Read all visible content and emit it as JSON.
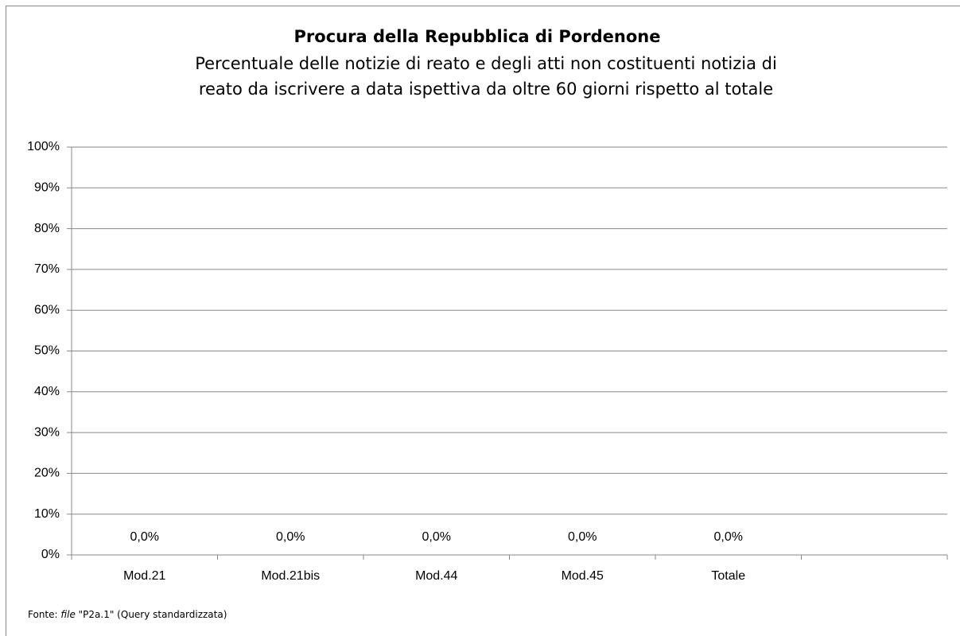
{
  "chart_data": {
    "type": "bar",
    "title": "Procura della Repubblica di Pordenone",
    "subtitle": [
      "Percentuale delle notizie di reato e degli atti non costituenti notizia di",
      "reato da iscrivere a data ispettiva da oltre 60 giorni rispetto al totale"
    ],
    "categories": [
      "Mod.21",
      "Mod.21bis",
      "Mod.44",
      "Mod.45",
      "Totale",
      null
    ],
    "values": [
      0,
      0,
      0,
      0,
      0,
      null
    ],
    "value_labels": [
      "0,0%",
      "0,0%",
      "0,0%",
      "0,0%",
      "0,0%",
      null
    ],
    "color": "#4f81bd",
    "ylim": [
      0,
      100
    ],
    "yticks": [
      {
        "value": 0,
        "label": "0%"
      },
      {
        "value": 10,
        "label": "10%"
      },
      {
        "value": 20,
        "label": "20%"
      },
      {
        "value": 30,
        "label": "30%"
      },
      {
        "value": 40,
        "label": "40%"
      },
      {
        "value": 50,
        "label": "50%"
      },
      {
        "value": 60,
        "label": "60%"
      },
      {
        "value": 70,
        "label": "70%"
      },
      {
        "value": 80,
        "label": "80%"
      },
      {
        "value": 90,
        "label": "90%"
      },
      {
        "value": 100,
        "label": "100%"
      }
    ],
    "grid": true,
    "source": [
      "Fonte: ",
      "file",
      " \"P2a.1\" (Query standardizzata)"
    ]
  }
}
